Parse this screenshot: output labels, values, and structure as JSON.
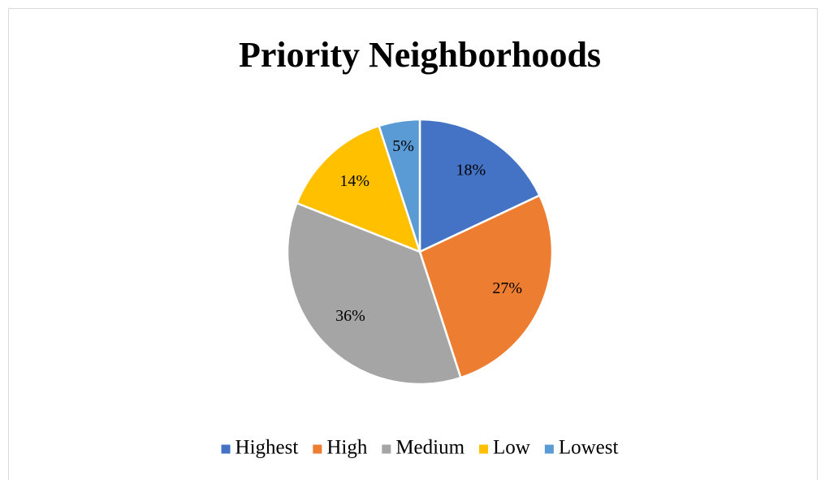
{
  "chart_data": {
    "type": "pie",
    "title": "Priority Neighborhoods",
    "categories": [
      "Highest",
      "High",
      "Medium",
      "Low",
      "Lowest"
    ],
    "values": [
      18,
      27,
      36,
      14,
      5
    ],
    "value_labels": [
      "18%",
      "27%",
      "36%",
      "14%",
      "5%"
    ],
    "colors": [
      "#4472c4",
      "#ed7d31",
      "#a5a5a5",
      "#ffc000",
      "#5b9bd5"
    ]
  }
}
